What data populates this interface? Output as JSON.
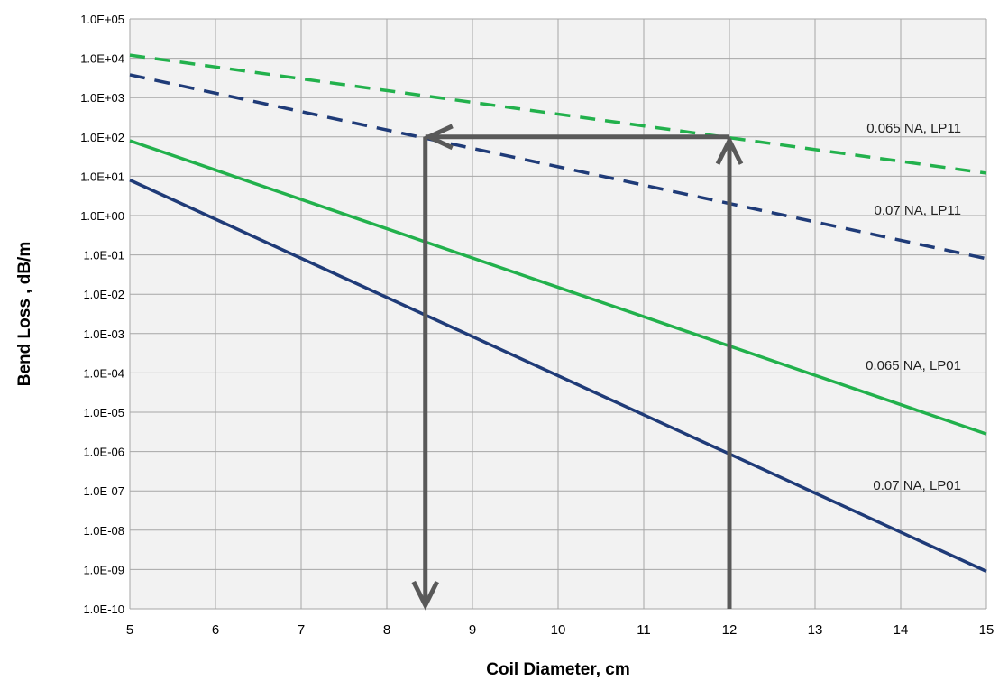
{
  "chart_data": {
    "type": "line",
    "title": "",
    "xlabel": "Coil Diameter, cm",
    "ylabel": "Bend Loss , dB/m",
    "xlim": [
      5,
      15
    ],
    "ylim": [
      1e-10,
      100000
    ],
    "y_scale": "log",
    "grid": true,
    "legend": "none (series labelled inline at right)",
    "x_ticks": [
      "5",
      "6",
      "7",
      "8",
      "9",
      "10",
      "11",
      "12",
      "13",
      "14",
      "15"
    ],
    "y_ticks": [
      "1.0E+05",
      "1.0E+04",
      "1.0E+03",
      "1.0E+02",
      "1.0E+01",
      "1.0E+00",
      "1.0E-01",
      "1.0E-02",
      "1.0E-03",
      "1.0E-04",
      "1.0E-05",
      "1.0E-06",
      "1.0E-07",
      "1.0E-08",
      "1.0E-09",
      "1.0E-10"
    ],
    "series": [
      {
        "name": "0.065 NA, LP11",
        "color": "#22b14c",
        "dash": true,
        "x": [
          5,
          15
        ],
        "y": [
          12000,
          12
        ]
      },
      {
        "name": "0.07 NA, LP11",
        "color": "#1f3b78",
        "dash": true,
        "x": [
          5,
          15
        ],
        "y": [
          3800,
          0.08
        ]
      },
      {
        "name": "0.065 NA, LP01",
        "color": "#22b14c",
        "dash": false,
        "x": [
          5,
          15
        ],
        "y": [
          80,
          2.8e-06
        ]
      },
      {
        "name": "0.07 NA, LP01",
        "color": "#1f3b78",
        "dash": false,
        "x": [
          5,
          15
        ],
        "y": [
          8,
          9e-10
        ]
      }
    ],
    "annotations": {
      "arrow_color": "#595959",
      "arrow_up": {
        "x": 12,
        "y_from": 1e-10,
        "y_to": 100
      },
      "arrow_left": {
        "y": 100,
        "x_from": 12,
        "x_to": 8.45
      },
      "arrow_down": {
        "x": 8.45,
        "y_from": 100,
        "y_to": 1e-10
      }
    }
  }
}
